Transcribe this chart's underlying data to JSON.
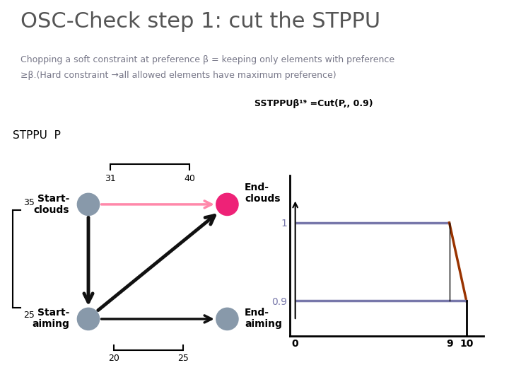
{
  "title": "OSC-Check step 1: cut the STPPU",
  "subtitle_line1": "Chopping a soft constraint at preference β = keeping only elements with preference",
  "subtitle_line2": "≥β.(Hard constraint →all allowed elements have maximum preference)",
  "label_stppu_p": "STPPU  P",
  "label_stppu_cut": "SSTPPUβ¹⁹ =Cut(P,, 0.9)",
  "node_color_gray": "#8899aa",
  "node_color_pink": "#ee2277",
  "arrow_color_black": "#111111",
  "arrow_color_pink": "#ff88aa",
  "graph_color_line": "#7777aa",
  "graph_color_orange": "#993300",
  "bg_color": "#ffffff",
  "title_color": "#555555",
  "subtitle_color": "#777788"
}
